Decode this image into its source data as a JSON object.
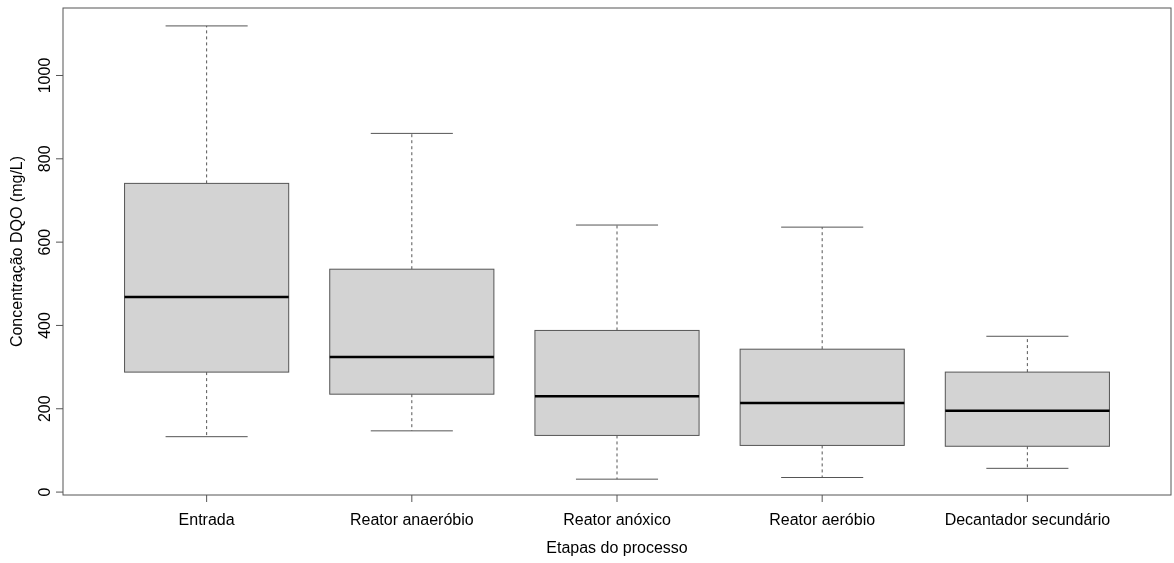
{
  "chart_data": {
    "type": "box",
    "xlabel": "Etapas do processo",
    "ylabel": "Concentração DQO (mg/L)",
    "categories": [
      "Entrada",
      "Reator anaeróbio",
      "Reator anóxico",
      "Reator aeróbio",
      "Decantador secundário"
    ],
    "color": "#d3d3d3",
    "boxes": [
      {
        "low": 133,
        "q1": 288,
        "median": 468,
        "q3": 741,
        "high": 1119
      },
      {
        "low": 147,
        "q1": 235,
        "median": 324,
        "q3": 535,
        "high": 861
      },
      {
        "low": 31,
        "q1": 136,
        "median": 230,
        "q3": 388,
        "high": 641
      },
      {
        "low": 35,
        "q1": 112,
        "median": 214,
        "q3": 343,
        "high": 636
      },
      {
        "low": 57,
        "q1": 110,
        "median": 195,
        "q3": 288,
        "high": 374
      }
    ],
    "ylim": [
      -7,
      1162
    ],
    "yticks": [
      0,
      200,
      400,
      600,
      800,
      1000
    ],
    "grid": false
  }
}
